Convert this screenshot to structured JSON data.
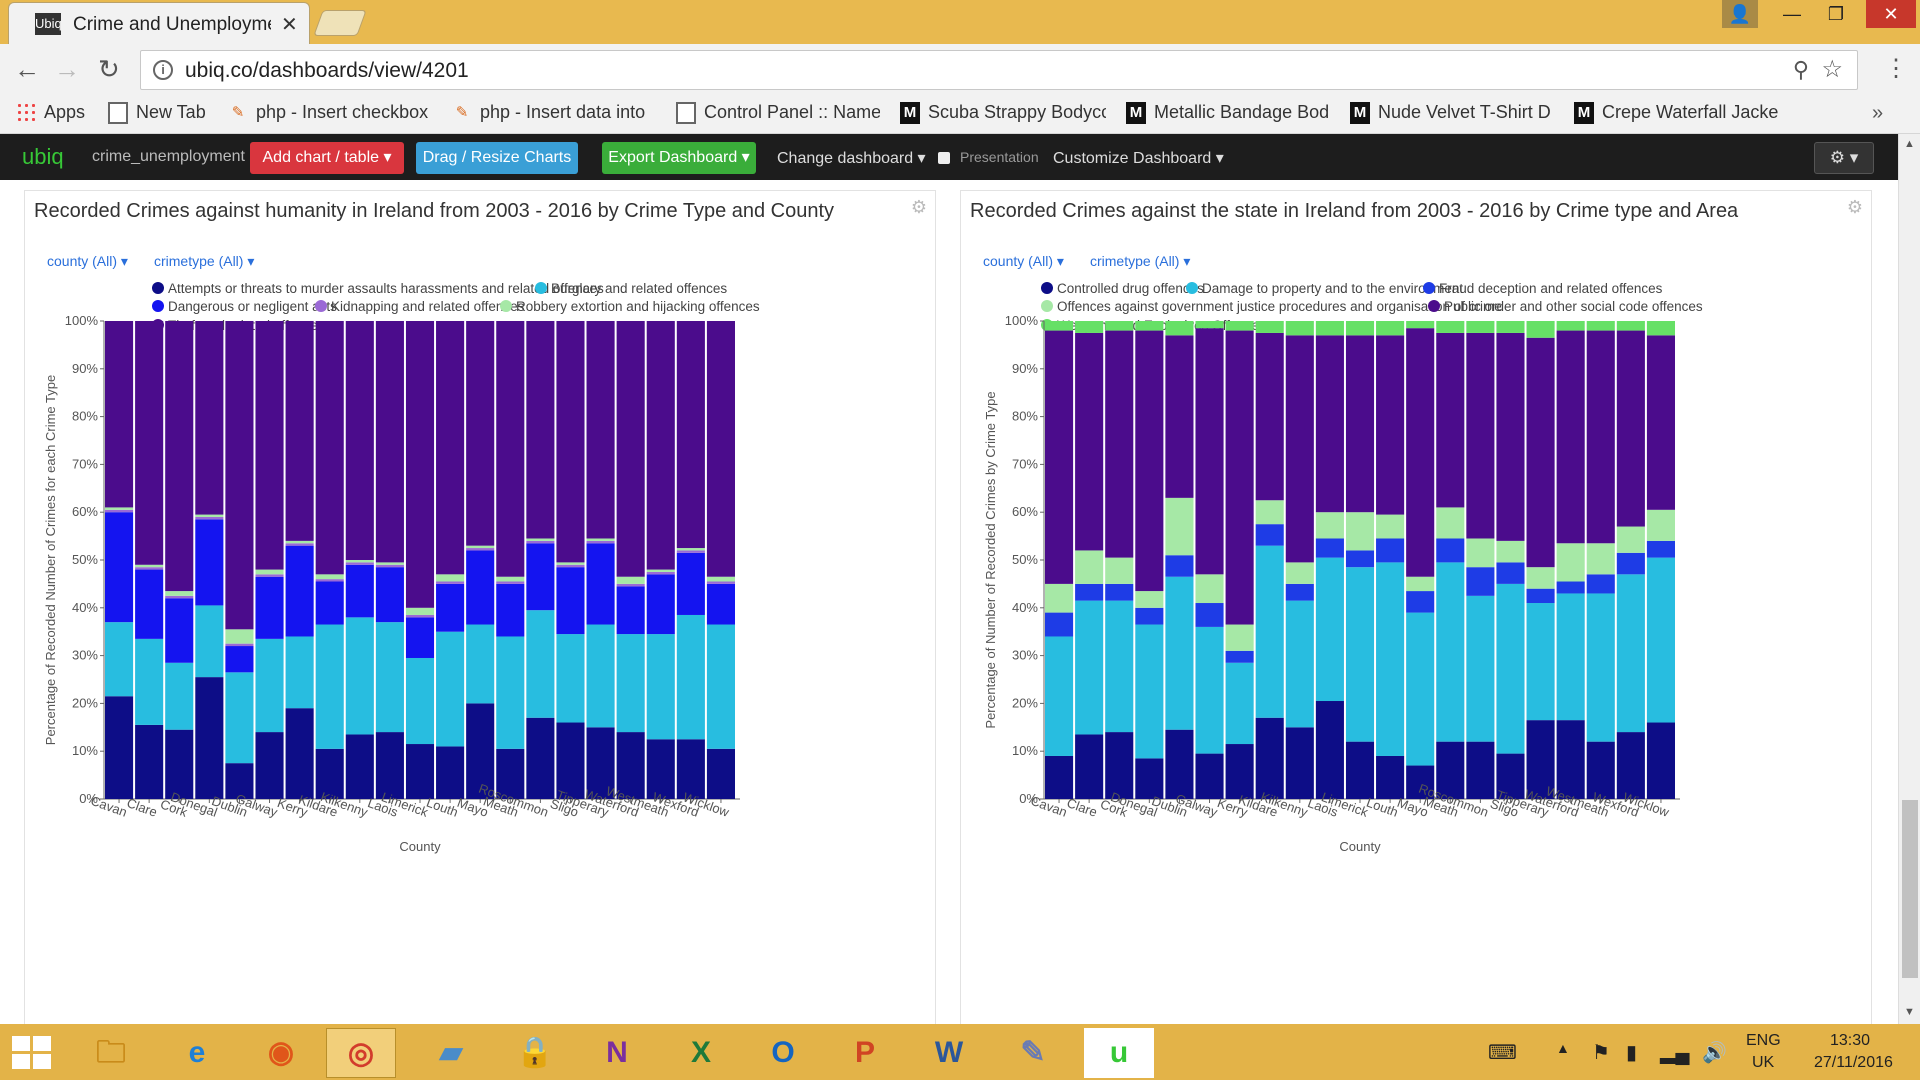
{
  "browser": {
    "tab_title": "Crime and Unemployme",
    "tab_favicon": "Ubiq",
    "url": "ubiq.co/dashboards/view/4201",
    "bookmarks": [
      {
        "icon": "apps-icon",
        "label": "Apps"
      },
      {
        "icon": "page-icon",
        "label": "New Tab"
      },
      {
        "icon": "php-icon",
        "label": "php - Insert checkbox"
      },
      {
        "icon": "php-icon",
        "label": "php - Insert data into"
      },
      {
        "icon": "page-icon",
        "label": "Control Panel :: Name"
      },
      {
        "icon": "m-icon",
        "label": "Scuba Strappy Bodycc"
      },
      {
        "icon": "m-icon",
        "label": "Metallic Bandage Bod"
      },
      {
        "icon": "m-icon",
        "label": "Nude Velvet T-Shirt D"
      },
      {
        "icon": "m-icon",
        "label": "Crepe Waterfall Jacke"
      }
    ]
  },
  "appbar": {
    "brand": "ubiq",
    "dataset": "crime_unemployment",
    "add_chart": "Add chart / table",
    "drag_resize": "Drag / Resize Charts",
    "export": "Export Dashboard",
    "change_dashboard": "Change dashboard",
    "presentation": "Presentation",
    "customize": "Customize Dashboard"
  },
  "panels": [
    {
      "title": "Recorded Crimes against humanity in Ireland from 2003 - 2016 by Crime Type and County",
      "filter_1": "county (All)",
      "filter_2": "crimetype (All)"
    },
    {
      "title": "Recorded Crimes against the state in Ireland from 2003 - 2016 by Crime type and Area",
      "filter_1": "county (All)",
      "filter_2": "crimetype (All)"
    }
  ],
  "chart_data": [
    {
      "type": "bar",
      "stacked": true,
      "normalized": true,
      "xlabel": "County",
      "ylabel": "Percentage of Recorded Number of Crimes for each Crime Type",
      "ylim": [
        0,
        100
      ],
      "yticks": [
        "0%",
        "10%",
        "20%",
        "30%",
        "40%",
        "50%",
        "60%",
        "70%",
        "80%",
        "90%",
        "100%"
      ],
      "categories": [
        "Cavan",
        "Clare",
        "Cork",
        "Donegal",
        "Dublin",
        "Galway",
        "Kerry",
        "Kildare",
        "Kilkenny",
        "Laois",
        "Limerick",
        "Louth",
        "Mayo",
        "Meath",
        "Roscommon",
        "Sligo",
        "Tipperary",
        "Waterford",
        "Westmeath",
        "Wexford",
        "Wicklow"
      ],
      "series": [
        {
          "name": "Attempts or threats to murder assaults harassments and related offences",
          "color": "#0d0d87",
          "values": [
            21.5,
            15.5,
            14.5,
            25.5,
            7.5,
            14,
            19,
            10.5,
            13.5,
            14,
            11.5,
            11,
            20,
            10.5,
            17,
            16,
            15,
            14,
            12.5,
            12.5,
            10.5
          ]
        },
        {
          "name": "Burglary and related offences",
          "color": "#28bde0",
          "values": [
            15.5,
            18,
            14,
            15,
            19,
            19.5,
            15,
            26,
            24.5,
            23,
            18,
            24,
            16.5,
            23.5,
            22.5,
            18.5,
            21.5,
            20.5,
            22,
            26,
            26
          ]
        },
        {
          "name": "Dangerous or negligent acts",
          "color": "#1414f0",
          "values": [
            23,
            14.5,
            13.5,
            18,
            5.5,
            13,
            19,
            9,
            11,
            11.5,
            8.5,
            10,
            15.5,
            11,
            14,
            14,
            17,
            10,
            12.5,
            13,
            8.5
          ]
        },
        {
          "name": "Kidnapping and related offences",
          "color": "#9b6ad6",
          "values": [
            0.5,
            0.5,
            0.5,
            0.5,
            0.5,
            0.5,
            0.5,
            0.5,
            0.5,
            0.5,
            0.5,
            0.5,
            0.5,
            0.5,
            0.5,
            0.5,
            0.5,
            0.5,
            0.5,
            0.5,
            0.5
          ]
        },
        {
          "name": "Robbery extortion and hijacking offences",
          "color": "#a6e8a6",
          "values": [
            0.5,
            0.5,
            1,
            0.5,
            3,
            1,
            0.5,
            1,
            0.5,
            0.5,
            1.5,
            1.5,
            0.5,
            1,
            0.5,
            0.5,
            0.5,
            1.5,
            0.5,
            0.5,
            1
          ]
        },
        {
          "name": "Theft and related offences",
          "color": "#4b0c8c",
          "values": [
            39,
            51,
            56.5,
            40.5,
            64.5,
            52,
            46,
            53,
            50,
            50.5,
            60,
            53,
            47,
            53.5,
            45.5,
            50.5,
            45.5,
            53.5,
            52,
            47.5,
            53.5
          ]
        }
      ]
    },
    {
      "type": "bar",
      "stacked": true,
      "normalized": true,
      "xlabel": "County",
      "ylabel": "Percentage of Number of Recorded Crimes by Crime Type",
      "ylim": [
        0,
        100
      ],
      "yticks": [
        "0%",
        "10%",
        "20%",
        "30%",
        "40%",
        "50%",
        "60%",
        "70%",
        "80%",
        "90%",
        "100%"
      ],
      "categories": [
        "Cavan",
        "Clare",
        "Cork",
        "Donegal",
        "Dublin",
        "Galway",
        "Kerry",
        "Kildare",
        "Kilkenny",
        "Laois",
        "Limerick",
        "Louth",
        "Mayo",
        "Meath",
        "Roscommon",
        "Sligo",
        "Tipperary",
        "Waterford",
        "Westmeath",
        "Wexford",
        "Wicklow"
      ],
      "series": [
        {
          "name": "Controlled drug offences",
          "color": "#0d0d87",
          "values": [
            9,
            13.5,
            14,
            8.5,
            14.5,
            9.5,
            11.5,
            17,
            15,
            20.5,
            12,
            9,
            7,
            12,
            12,
            9.5,
            16.5,
            16.5,
            12,
            14,
            16
          ]
        },
        {
          "name": "Damage to property and to the environment",
          "color": "#28bde0",
          "values": [
            25,
            28,
            27.5,
            28,
            32,
            26.5,
            17,
            36,
            26.5,
            30,
            36.5,
            40.5,
            32,
            37.5,
            30.5,
            35.5,
            24.5,
            26.5,
            31,
            33,
            34.5
          ]
        },
        {
          "name": "Fraud deception and related offences",
          "color": "#1e3ce6",
          "values": [
            5,
            3.5,
            3.5,
            3.5,
            4.5,
            5,
            2.5,
            4.5,
            3.5,
            4,
            3.5,
            5,
            4.5,
            5,
            6,
            4.5,
            3,
            2.5,
            4,
            4.5,
            3.5
          ]
        },
        {
          "name": "Offences against government justice procedures and organisation of crime",
          "color": "#a6e8a6",
          "values": [
            6,
            7,
            5.5,
            3.5,
            12,
            6,
            5.5,
            5,
            4.5,
            5.5,
            8,
            5,
            3,
            6.5,
            6,
            4.5,
            4.5,
            8,
            6.5,
            5.5,
            6.5
          ]
        },
        {
          "name": "Public order and other social code offences",
          "color": "#4b0c8c",
          "values": [
            53,
            45.5,
            47.5,
            54.5,
            34,
            51.5,
            61.5,
            35,
            47.5,
            37,
            37,
            37.5,
            52,
            36.5,
            43,
            43.5,
            48,
            44.5,
            44.5,
            41,
            36.5
          ]
        },
        {
          "name": "Weapons and Explosives Offences",
          "color": "#66e066",
          "values": [
            2,
            2.5,
            2,
            2,
            3,
            1.5,
            2,
            2.5,
            3,
            3,
            3,
            3,
            1.5,
            2.5,
            2.5,
            2.5,
            3.5,
            2,
            2,
            2,
            3
          ]
        }
      ]
    }
  ],
  "taskbar": {
    "lang": "ENG",
    "region": "UK",
    "time": "13:30",
    "date": "27/11/2016"
  }
}
